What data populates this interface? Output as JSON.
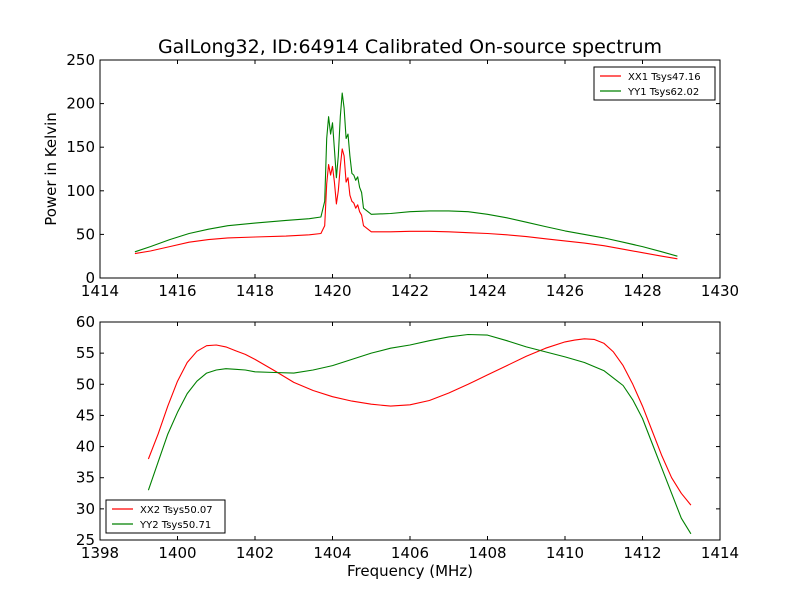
{
  "title": "GalLong32, ID:64914 Calibrated On-source spectrum",
  "chart_data": [
    {
      "type": "line",
      "ylabel": "Power in Kelvin",
      "xlabel": "",
      "xlim": [
        1414,
        1430
      ],
      "ylim": [
        0,
        250
      ],
      "xticks": [
        "1414",
        "1416",
        "1418",
        "1420",
        "1422",
        "1424",
        "1426",
        "1428",
        "1430"
      ],
      "yticks": [
        "0",
        "50",
        "100",
        "150",
        "200",
        "250"
      ],
      "legend": "top-right",
      "series": [
        {
          "name": "XX1 Tsys47.16",
          "color": "#ff0000",
          "x": [
            1414.9,
            1415.3,
            1415.8,
            1416.3,
            1416.8,
            1417.3,
            1418.0,
            1418.8,
            1419.4,
            1419.7,
            1419.8,
            1419.85,
            1419.9,
            1419.95,
            1420.0,
            1420.05,
            1420.1,
            1420.15,
            1420.2,
            1420.25,
            1420.3,
            1420.35,
            1420.4,
            1420.45,
            1420.5,
            1420.55,
            1420.6,
            1420.65,
            1420.7,
            1420.75,
            1420.8,
            1421.0,
            1421.5,
            1422.0,
            1422.5,
            1423.0,
            1423.5,
            1424.0,
            1424.5,
            1425.0,
            1425.5,
            1426.0,
            1426.5,
            1427.0,
            1427.5,
            1428.0,
            1428.5,
            1428.9
          ],
          "y": [
            28,
            31,
            36,
            41,
            44,
            46,
            47,
            48,
            49.5,
            51,
            60,
            108,
            130,
            118,
            128,
            110,
            85,
            100,
            128,
            148,
            140,
            110,
            115,
            95,
            88,
            86,
            80,
            84,
            76,
            72,
            60,
            53,
            53,
            53.5,
            53.5,
            53,
            52,
            51,
            49.5,
            47.5,
            45,
            42.5,
            40,
            37,
            33,
            29,
            25,
            22
          ]
        },
        {
          "name": "YY1 Tsys62.02",
          "color": "#008000",
          "x": [
            1414.9,
            1415.3,
            1415.8,
            1416.3,
            1416.8,
            1417.3,
            1418.0,
            1418.8,
            1419.4,
            1419.7,
            1419.8,
            1419.85,
            1419.9,
            1419.95,
            1420.0,
            1420.05,
            1420.1,
            1420.15,
            1420.2,
            1420.25,
            1420.3,
            1420.35,
            1420.4,
            1420.45,
            1420.5,
            1420.55,
            1420.6,
            1420.65,
            1420.7,
            1420.75,
            1420.8,
            1421.0,
            1421.5,
            1422.0,
            1422.5,
            1423.0,
            1423.5,
            1424.0,
            1424.5,
            1425.0,
            1425.5,
            1426.0,
            1426.5,
            1427.0,
            1427.5,
            1428.0,
            1428.5,
            1428.9
          ],
          "y": [
            30,
            36,
            44,
            51,
            56,
            60,
            63,
            66,
            68,
            70,
            88,
            160,
            185,
            165,
            178,
            148,
            115,
            140,
            185,
            212,
            195,
            160,
            165,
            140,
            120,
            118,
            112,
            116,
            104,
            98,
            80,
            73,
            74,
            76,
            77,
            77,
            76,
            73,
            69,
            64,
            59,
            54,
            50,
            46,
            41,
            36,
            30,
            25
          ]
        }
      ]
    },
    {
      "type": "line",
      "xlabel": "Frequency (MHz)",
      "ylabel": "",
      "xlim": [
        1398,
        1414
      ],
      "ylim": [
        25,
        60
      ],
      "xticks": [
        "1398",
        "1400",
        "1402",
        "1404",
        "1406",
        "1408",
        "1410",
        "1412",
        "1414"
      ],
      "yticks": [
        "25",
        "30",
        "35",
        "40",
        "45",
        "50",
        "55",
        "60"
      ],
      "legend": "bottom-left",
      "series": [
        {
          "name": "XX2 Tsys50.07",
          "color": "#ff0000",
          "x": [
            1399.25,
            1399.5,
            1399.75,
            1400.0,
            1400.25,
            1400.5,
            1400.75,
            1401.0,
            1401.25,
            1401.5,
            1401.75,
            1402.0,
            1402.5,
            1403.0,
            1403.5,
            1404.0,
            1404.5,
            1405.0,
            1405.5,
            1406.0,
            1406.5,
            1407.0,
            1407.5,
            1408.0,
            1408.5,
            1409.0,
            1409.5,
            1410.0,
            1410.25,
            1410.5,
            1410.75,
            1411.0,
            1411.25,
            1411.5,
            1411.75,
            1412.0,
            1412.25,
            1412.5,
            1412.75,
            1413.0,
            1413.25
          ],
          "y": [
            38,
            42,
            46.5,
            50.5,
            53.5,
            55.3,
            56.2,
            56.3,
            56.0,
            55.4,
            54.8,
            54.0,
            52.2,
            50.3,
            49.0,
            48.0,
            47.3,
            46.8,
            46.5,
            46.7,
            47.4,
            48.6,
            50.0,
            51.5,
            53.0,
            54.5,
            55.8,
            56.8,
            57.1,
            57.3,
            57.2,
            56.6,
            55.2,
            53.0,
            50.0,
            46.5,
            42.5,
            38.5,
            35.0,
            32.5,
            30.6
          ]
        },
        {
          "name": "YY2 Tsys50.71",
          "color": "#008000",
          "x": [
            1399.25,
            1399.5,
            1399.75,
            1400.0,
            1400.25,
            1400.5,
            1400.75,
            1401.0,
            1401.25,
            1401.5,
            1401.75,
            1402.0,
            1402.5,
            1403.0,
            1403.5,
            1404.0,
            1404.5,
            1405.0,
            1405.5,
            1406.0,
            1406.5,
            1407.0,
            1407.5,
            1408.0,
            1408.5,
            1409.0,
            1409.5,
            1410.0,
            1410.5,
            1411.0,
            1411.5,
            1411.75,
            1412.0,
            1412.25,
            1412.5,
            1412.75,
            1413.0,
            1413.25
          ],
          "y": [
            33,
            37.5,
            42,
            45.5,
            48.5,
            50.5,
            51.8,
            52.3,
            52.5,
            52.4,
            52.3,
            52.0,
            51.9,
            51.8,
            52.3,
            53.0,
            54.0,
            55.0,
            55.8,
            56.3,
            57.0,
            57.6,
            58.0,
            57.9,
            57.0,
            56.0,
            55.2,
            54.4,
            53.5,
            52.2,
            49.8,
            47.5,
            44.5,
            40.5,
            36.5,
            32.5,
            28.5,
            26.0
          ]
        }
      ]
    }
  ]
}
